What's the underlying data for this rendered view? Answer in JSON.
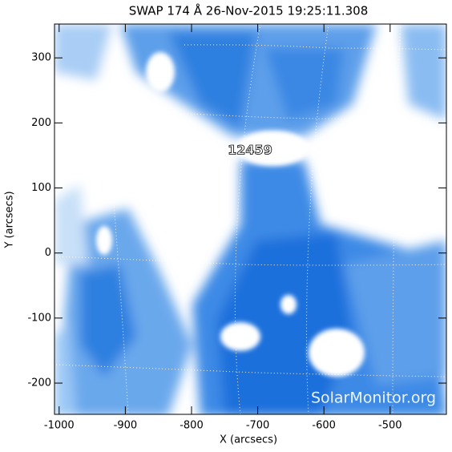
{
  "chart_data": {
    "type": "image",
    "title": "SWAP 174 Å 26-Nov-2015 19:25:11.308",
    "xlabel": "X (arcsecs)",
    "ylabel": "Y (arcsecs)",
    "xlim": [
      -1007,
      -415
    ],
    "ylim": [
      -248,
      352
    ],
    "xticks": [
      -1000,
      -900,
      -800,
      -700,
      -600,
      -500
    ],
    "yticks": [
      -200,
      -100,
      0,
      100,
      200,
      300
    ],
    "annotations": [
      "12459",
      "SolarMonitor.org"
    ]
  }
}
